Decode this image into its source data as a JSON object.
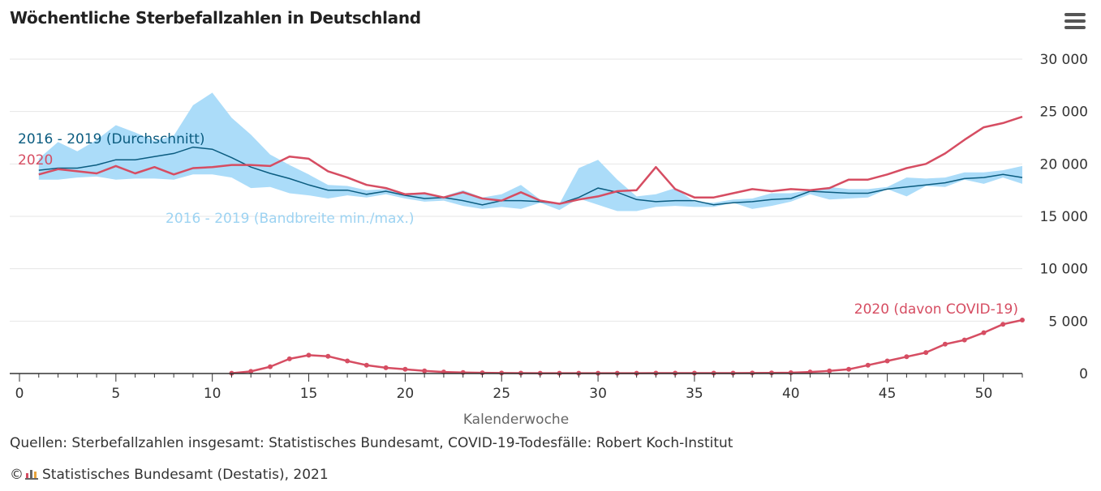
{
  "header": {
    "title": "Wöchentliche Sterbefallzahlen in Deutschland"
  },
  "menu": {
    "icon": "hamburger-menu-icon"
  },
  "footer": {
    "sources": "Quellen: Sterbefallzahlen insgesamt: Statistisches Bundesamt, COVID-19-Todesfälle: Robert Koch-Institut",
    "copyright_symbol": "©",
    "copyright_text": "Statistisches Bundesamt (Destatis), 2021",
    "logo_icon": "destatis-logo-icon"
  },
  "chart_data": {
    "type": "line",
    "title": "Wöchentliche Sterbefallzahlen in Deutschland",
    "xlabel": "Kalenderwoche",
    "ylabel": "",
    "xlim": [
      0,
      52
    ],
    "ylim": [
      0,
      30000
    ],
    "x_ticks": [
      0,
      5,
      10,
      15,
      20,
      25,
      30,
      35,
      40,
      45,
      50
    ],
    "y_ticks": [
      0,
      5000,
      10000,
      15000,
      20000,
      25000,
      30000
    ],
    "y_tick_labels": [
      "0",
      "5 000",
      "10 000",
      "15 000",
      "20 000",
      "25 000",
      "30 000"
    ],
    "grid": "horizontal",
    "colors": {
      "band": "#abdcf9",
      "average": "#0b5c80",
      "y2020": "#d64d62",
      "band_label": "#9dd3f2"
    },
    "band": {
      "name": "2016 - 2019 (Bandbreite min./max.)",
      "x": [
        1,
        2,
        3,
        4,
        5,
        6,
        7,
        8,
        9,
        10,
        11,
        12,
        13,
        14,
        15,
        16,
        17,
        18,
        19,
        20,
        21,
        22,
        23,
        24,
        25,
        26,
        27,
        28,
        29,
        30,
        31,
        32,
        33,
        34,
        35,
        36,
        37,
        38,
        39,
        40,
        41,
        42,
        43,
        44,
        45,
        46,
        47,
        48,
        49,
        50,
        51,
        52
      ],
      "min": [
        18500,
        18500,
        18700,
        18800,
        18500,
        18600,
        18600,
        18500,
        19000,
        19000,
        18700,
        17700,
        17800,
        17200,
        17000,
        16700,
        17000,
        16800,
        17100,
        16700,
        16400,
        16500,
        16000,
        15700,
        15900,
        15700,
        16300,
        15600,
        16700,
        16100,
        15500,
        15500,
        15900,
        16000,
        15900,
        15900,
        16300,
        15700,
        16000,
        16400,
        17100,
        16600,
        16700,
        16800,
        17600,
        16900,
        17900,
        17800,
        18500,
        18100,
        18700,
        18100
      ],
      "max": [
        20500,
        22100,
        21200,
        22300,
        23700,
        23000,
        22200,
        22700,
        25600,
        26800,
        24400,
        22800,
        20900,
        19900,
        19000,
        18000,
        17900,
        17500,
        17600,
        17200,
        17200,
        16900,
        17500,
        16800,
        17100,
        18000,
        16600,
        16200,
        19600,
        20400,
        18500,
        16900,
        17100,
        17700,
        16400,
        16300,
        16600,
        16700,
        17200,
        17200,
        17500,
        17800,
        17600,
        17600,
        17800,
        18700,
        18600,
        18700,
        19200,
        19200,
        19400,
        19800
      ]
    },
    "series": [
      {
        "name": "2016 - 2019 (Durchschnitt)",
        "x": [
          1,
          2,
          3,
          4,
          5,
          6,
          7,
          8,
          9,
          10,
          11,
          12,
          13,
          14,
          15,
          16,
          17,
          18,
          19,
          20,
          21,
          22,
          23,
          24,
          25,
          26,
          27,
          28,
          29,
          30,
          31,
          32,
          33,
          34,
          35,
          36,
          37,
          38,
          39,
          40,
          41,
          42,
          43,
          44,
          45,
          46,
          47,
          48,
          49,
          50,
          51,
          52
        ],
        "values": [
          19400,
          19600,
          19600,
          19900,
          20400,
          20400,
          20700,
          21000,
          21600,
          21400,
          20600,
          19700,
          19100,
          18600,
          18000,
          17500,
          17500,
          17100,
          17400,
          17000,
          16700,
          16800,
          16500,
          16100,
          16500,
          16500,
          16400,
          16200,
          16800,
          17700,
          17300,
          16600,
          16400,
          16500,
          16500,
          16100,
          16300,
          16400,
          16600,
          16700,
          17400,
          17300,
          17200,
          17200,
          17600,
          17800,
          18000,
          18200,
          18600,
          18700,
          19000,
          18700
        ]
      },
      {
        "name": "2020",
        "x": [
          1,
          2,
          3,
          4,
          5,
          6,
          7,
          8,
          9,
          10,
          11,
          12,
          13,
          14,
          15,
          16,
          17,
          18,
          19,
          20,
          21,
          22,
          23,
          24,
          25,
          26,
          27,
          28,
          29,
          30,
          31,
          32,
          33,
          34,
          35,
          36,
          37,
          38,
          39,
          40,
          41,
          42,
          43,
          44,
          45,
          46,
          47,
          48,
          49,
          50,
          51,
          52
        ],
        "values": [
          19000,
          19500,
          19300,
          19100,
          19800,
          19100,
          19700,
          19000,
          19600,
          19700,
          19900,
          19900,
          19800,
          20700,
          20500,
          19300,
          18700,
          18000,
          17700,
          17100,
          17200,
          16800,
          17300,
          16700,
          16500,
          17300,
          16500,
          16200,
          16600,
          16900,
          17400,
          17500,
          19700,
          17600,
          16800,
          16800,
          17200,
          17600,
          17400,
          17600,
          17500,
          17700,
          18500,
          18500,
          19000,
          19600,
          20000,
          21000,
          22300,
          23500,
          23900,
          24500
        ]
      },
      {
        "name": "2020 (davon COVID-19)",
        "x": [
          11,
          12,
          13,
          14,
          15,
          16,
          17,
          18,
          19,
          20,
          21,
          22,
          23,
          24,
          25,
          26,
          27,
          28,
          29,
          30,
          31,
          32,
          33,
          34,
          35,
          36,
          37,
          38,
          39,
          40,
          41,
          42,
          43,
          44,
          45,
          46,
          47,
          48,
          49,
          50,
          51,
          52
        ],
        "values": [
          30,
          200,
          650,
          1400,
          1750,
          1650,
          1200,
          800,
          550,
          400,
          250,
          150,
          100,
          70,
          50,
          40,
          30,
          30,
          30,
          30,
          30,
          30,
          40,
          40,
          40,
          40,
          40,
          50,
          60,
          80,
          150,
          250,
          400,
          800,
          1200,
          1600,
          2000,
          2800,
          3200,
          3900,
          4700,
          5100
        ]
      }
    ],
    "annotations": [
      "2016 - 2019 (Durchschnitt)",
      "2020",
      "2016 - 2019 (Bandbreite min./max.)",
      "2020 (davon COVID-19)"
    ]
  }
}
